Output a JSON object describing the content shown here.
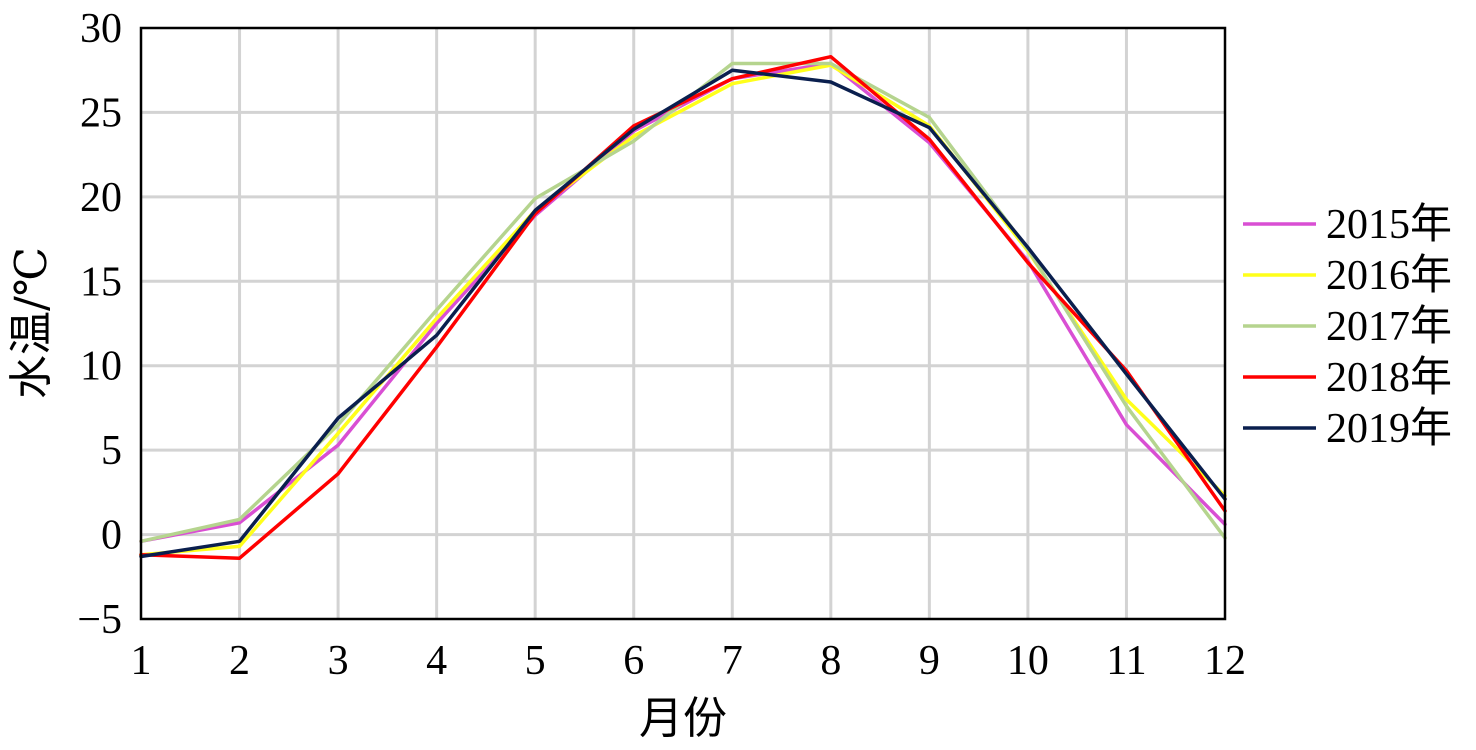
{
  "chart_data": {
    "type": "line",
    "title": "",
    "xlabel": "月份",
    "ylabel": "水温/℃",
    "x": [
      1,
      2,
      3,
      4,
      5,
      6,
      7,
      8,
      9,
      10,
      11,
      12
    ],
    "xlim": [
      1,
      12
    ],
    "ylim": [
      -5,
      30
    ],
    "yticks": [
      -5,
      0,
      5,
      10,
      15,
      20,
      25,
      30
    ],
    "ytick_labels": [
      "−5",
      "0",
      "5",
      "10",
      "15",
      "20",
      "25",
      "30"
    ],
    "grid": true,
    "legend_position": "right",
    "series": [
      {
        "name": "2015年",
        "color": "#d94fd3",
        "values": [
          -0.4,
          0.7,
          5.3,
          12.5,
          18.9,
          23.9,
          27.0,
          27.9,
          23.2,
          16.2,
          6.5,
          0.6
        ]
      },
      {
        "name": "2016年",
        "color": "#ffff1a",
        "values": [
          -1.2,
          -0.7,
          6.0,
          12.8,
          19.2,
          23.6,
          26.7,
          27.8,
          24.2,
          16.8,
          8.0,
          2.3
        ]
      },
      {
        "name": "2017年",
        "color": "#b5d48e",
        "values": [
          -0.4,
          0.9,
          6.5,
          13.3,
          19.9,
          23.3,
          27.9,
          27.9,
          24.7,
          16.9,
          7.6,
          -0.2
        ]
      },
      {
        "name": "2018年",
        "color": "#ff0000",
        "values": [
          -1.2,
          -1.4,
          3.6,
          11.1,
          19.0,
          24.2,
          27.0,
          28.3,
          23.4,
          16.1,
          9.7,
          1.4
        ]
      },
      {
        "name": "2019年",
        "color": "#0a1f4e",
        "values": [
          -1.3,
          -0.4,
          6.9,
          11.8,
          19.2,
          24.0,
          27.5,
          26.8,
          24.1,
          17.0,
          9.5,
          2.1
        ]
      }
    ]
  }
}
